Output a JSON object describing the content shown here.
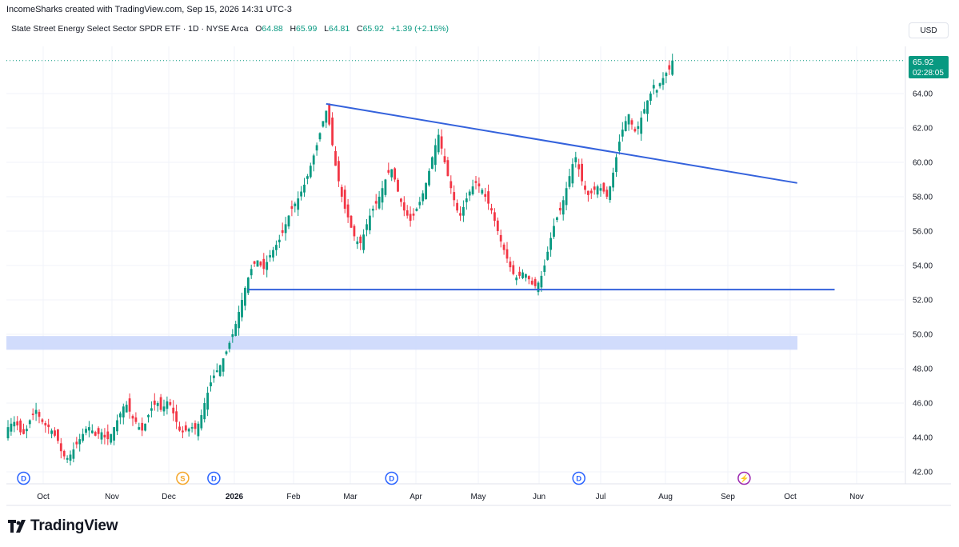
{
  "header": {
    "created_by": "IncomeSharks created with TradingView.com, Sep 15, 2026 14:31 UTC-3"
  },
  "legend": {
    "symbol_title": "State Street Energy Select Sector SPDR ETF · 1D · NYSE Arca",
    "open_label": "O",
    "open": "64.88",
    "high_label": "H",
    "high": "65.99",
    "low_label": "L",
    "low": "64.81",
    "close_label": "C",
    "close": "65.92",
    "change": "+1.39 (+2.15%)"
  },
  "currency": "USD",
  "price_badge": {
    "price": "65.92",
    "countdown": "02:28:05"
  },
  "brand": {
    "name": "TradingView"
  },
  "colors": {
    "up": "#089981",
    "down": "#f23645",
    "trendline": "#3462dc",
    "zone": "#c9d6fb",
    "badge": "#089981"
  },
  "chart_data": {
    "type": "candlestick",
    "y_axis": {
      "min": 42,
      "max": 66,
      "ticks": [
        "42.00",
        "44.00",
        "46.00",
        "48.00",
        "50.00",
        "52.00",
        "54.00",
        "56.00",
        "58.00",
        "60.00",
        "62.00",
        "64.00"
      ]
    },
    "x_axis": {
      "ticks": [
        {
          "label": "Oct",
          "bold": false
        },
        {
          "label": "Nov",
          "bold": false
        },
        {
          "label": "Dec",
          "bold": false
        },
        {
          "label": "2026",
          "bold": true
        },
        {
          "label": "Feb",
          "bold": false
        },
        {
          "label": "Mar",
          "bold": false
        },
        {
          "label": "Apr",
          "bold": false
        },
        {
          "label": "May",
          "bold": false
        },
        {
          "label": "Jun",
          "bold": false
        },
        {
          "label": "Jul",
          "bold": false
        },
        {
          "label": "Aug",
          "bold": false
        },
        {
          "label": "Sep",
          "bold": false
        },
        {
          "label": "Oct",
          "bold": false
        },
        {
          "label": "Nov",
          "bold": false
        }
      ]
    },
    "close_path": [
      44.6,
      44.8,
      44.9,
      44.7,
      44.3,
      44.2,
      44.5,
      45.0,
      45.3,
      45.6,
      45.2,
      44.9,
      44.7,
      44.6,
      44.4,
      44.1,
      43.8,
      43.2,
      42.9,
      42.8,
      43.0,
      43.3,
      43.6,
      43.9,
      44.2,
      44.5,
      44.6,
      44.4,
      44.1,
      44.2,
      44.3,
      44.0,
      43.9,
      44.2,
      44.6,
      45.0,
      45.4,
      45.8,
      45.9,
      45.5,
      45.1,
      44.9,
      44.6,
      44.4,
      44.8,
      45.3,
      45.7,
      45.9,
      46.0,
      45.6,
      45.8,
      46.1,
      45.9,
      45.4,
      44.9,
      44.4,
      44.3,
      44.4,
      44.5,
      44.6,
      44.5,
      44.8,
      45.3,
      46.0,
      46.6,
      47.2,
      47.6,
      47.9,
      48.2,
      48.6,
      49.0,
      49.5,
      50.0,
      50.6,
      51.3,
      52.0,
      52.7,
      53.3,
      53.8,
      54.1,
      54.3,
      54.0,
      53.8,
      54.2,
      54.6,
      54.9,
      55.2,
      55.5,
      55.9,
      56.4,
      56.9,
      57.3,
      57.6,
      57.9,
      58.3,
      58.7,
      59.2,
      59.8,
      60.4,
      61.0,
      61.7,
      62.4,
      63.0,
      62.2,
      61.0,
      59.8,
      58.9,
      58.0,
      57.3,
      56.8,
      56.2,
      55.7,
      55.4,
      55.3,
      55.8,
      56.4,
      56.9,
      57.3,
      57.6,
      58.0,
      58.5,
      59.0,
      59.4,
      59.6,
      59.0,
      58.3,
      57.7,
      57.2,
      56.9,
      56.6,
      56.9,
      57.3,
      57.7,
      58.2,
      58.8,
      59.5,
      60.3,
      61.0,
      61.6,
      60.8,
      60.0,
      59.2,
      58.5,
      57.8,
      57.2,
      56.9,
      57.4,
      57.9,
      58.3,
      58.6,
      58.8,
      58.6,
      58.4,
      58.0,
      57.6,
      57.2,
      56.6,
      56.0,
      55.4,
      54.9,
      54.4,
      53.9,
      53.5,
      53.3,
      53.4,
      53.6,
      53.5,
      53.2,
      52.9,
      52.8,
      53.0,
      53.4,
      54.0,
      54.8,
      55.6,
      56.3,
      56.8,
      57.2,
      57.8,
      58.5,
      59.2,
      59.9,
      60.3,
      59.6,
      58.9,
      58.4,
      58.1,
      58.2,
      58.4,
      58.6,
      58.5,
      58.3,
      58.0,
      58.6,
      59.4,
      60.3,
      61.2,
      61.9,
      62.4,
      62.8,
      62.2,
      61.8,
      62.1,
      62.6,
      63.1,
      63.6,
      64.0,
      64.5,
      64.2,
      64.6,
      64.9,
      65.2,
      65.4,
      65.92
    ],
    "annotations": {
      "descending_trendline": {
        "from": {
          "bar": 102,
          "price": 63.4
        },
        "to": {
          "bar": 253,
          "price": 58.8
        }
      },
      "support_line": {
        "from": {
          "bar": 77,
          "price": 52.6
        },
        "to": {
          "bar": 265,
          "price": 52.6
        }
      },
      "zone": {
        "from_price": 49.1,
        "to_price": 49.9
      },
      "last_price_line": 65.92
    },
    "event_markers": [
      {
        "label": "D",
        "color": "#2962ff",
        "bar": 5
      },
      {
        "label": "S",
        "color": "#f4a62a",
        "bar": 56
      },
      {
        "label": "D",
        "color": "#2962ff",
        "bar": 66
      },
      {
        "label": "D",
        "color": "#2962ff",
        "bar": 123
      },
      {
        "label": "D",
        "color": "#2962ff",
        "bar": 183
      },
      {
        "label": "⚡",
        "color": "#9c27b0",
        "bar": 236
      }
    ]
  }
}
